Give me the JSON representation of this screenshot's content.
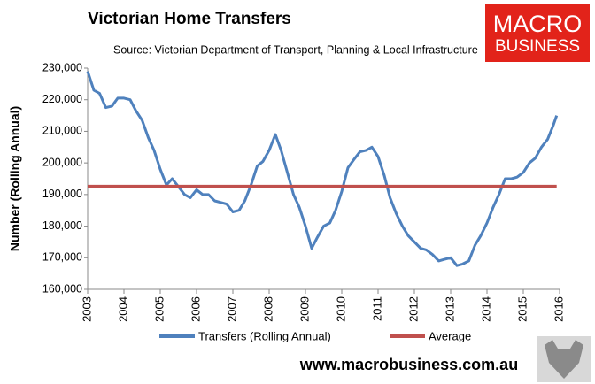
{
  "chart_data": {
    "type": "line",
    "title": "Victorian Home Transfers",
    "subtitle": "Source: Victorian Department of Transport, Planning & Local Infrastructure",
    "ylabel": "Number (Rolling Annual)",
    "xlim": [
      2003,
      2016
    ],
    "xticks": [
      2003,
      2004,
      2005,
      2006,
      2007,
      2008,
      2009,
      2010,
      2011,
      2012,
      2013,
      2014,
      2015,
      2016
    ],
    "ylim": [
      160000,
      230000
    ],
    "yticks": [
      {
        "value": 160000,
        "label": "160,000"
      },
      {
        "value": 170000,
        "label": "170,000"
      },
      {
        "value": 180000,
        "label": "180,000"
      },
      {
        "value": 190000,
        "label": "190,000"
      },
      {
        "value": 200000,
        "label": "200,000"
      },
      {
        "value": 210000,
        "label": "210,000"
      },
      {
        "value": 220000,
        "label": "220,000"
      },
      {
        "value": 230000,
        "label": "230,000"
      }
    ],
    "legend": "bottom",
    "series": [
      {
        "name": "Transfers (Rolling Annual)",
        "color": "#4f81bd",
        "x": [
          2003.0,
          2003.17,
          2003.33,
          2003.5,
          2003.67,
          2003.83,
          2004.0,
          2004.17,
          2004.33,
          2004.5,
          2004.67,
          2004.83,
          2005.0,
          2005.17,
          2005.33,
          2005.5,
          2005.67,
          2005.83,
          2006.0,
          2006.17,
          2006.33,
          2006.5,
          2006.67,
          2006.83,
          2007.0,
          2007.17,
          2007.33,
          2007.5,
          2007.67,
          2007.83,
          2008.0,
          2008.17,
          2008.33,
          2008.5,
          2008.67,
          2008.83,
          2009.0,
          2009.17,
          2009.33,
          2009.5,
          2009.67,
          2009.83,
          2010.0,
          2010.17,
          2010.33,
          2010.5,
          2010.67,
          2010.83,
          2011.0,
          2011.17,
          2011.33,
          2011.5,
          2011.67,
          2011.83,
          2012.0,
          2012.17,
          2012.33,
          2012.5,
          2012.67,
          2012.83,
          2013.0,
          2013.17,
          2013.33,
          2013.5,
          2013.67,
          2013.83,
          2014.0,
          2014.17,
          2014.33,
          2014.5,
          2014.67,
          2014.83,
          2015.0,
          2015.17,
          2015.33,
          2015.5,
          2015.67,
          2015.83,
          2015.92
        ],
        "values": [
          229000,
          223000,
          222000,
          217500,
          218000,
          220500,
          220500,
          220000,
          216500,
          213500,
          208000,
          204000,
          198000,
          193000,
          195000,
          192500,
          190000,
          189000,
          191500,
          190000,
          190000,
          188000,
          187500,
          187000,
          184500,
          185000,
          188000,
          193000,
          199000,
          200500,
          204000,
          209000,
          204000,
          197000,
          190000,
          186000,
          180000,
          173000,
          176500,
          180000,
          181000,
          185000,
          191000,
          198500,
          201000,
          203500,
          204000,
          205000,
          202000,
          196000,
          189000,
          184000,
          180000,
          177000,
          175000,
          173000,
          172500,
          171000,
          169000,
          169500,
          170000,
          167500,
          168000,
          169000,
          174000,
          177000,
          181000,
          186000,
          190000,
          195000,
          195000,
          195500,
          197000,
          200000,
          201500,
          205000,
          207500,
          212000,
          215000
        ]
      },
      {
        "name": "Average",
        "color": "#c0504d",
        "x": [
          2003.0,
          2015.92
        ],
        "values": [
          192500,
          192500
        ]
      }
    ]
  },
  "logo": [
    "MACRO",
    "BUSINESS"
  ],
  "website": "www.macrobusiness.com.au"
}
